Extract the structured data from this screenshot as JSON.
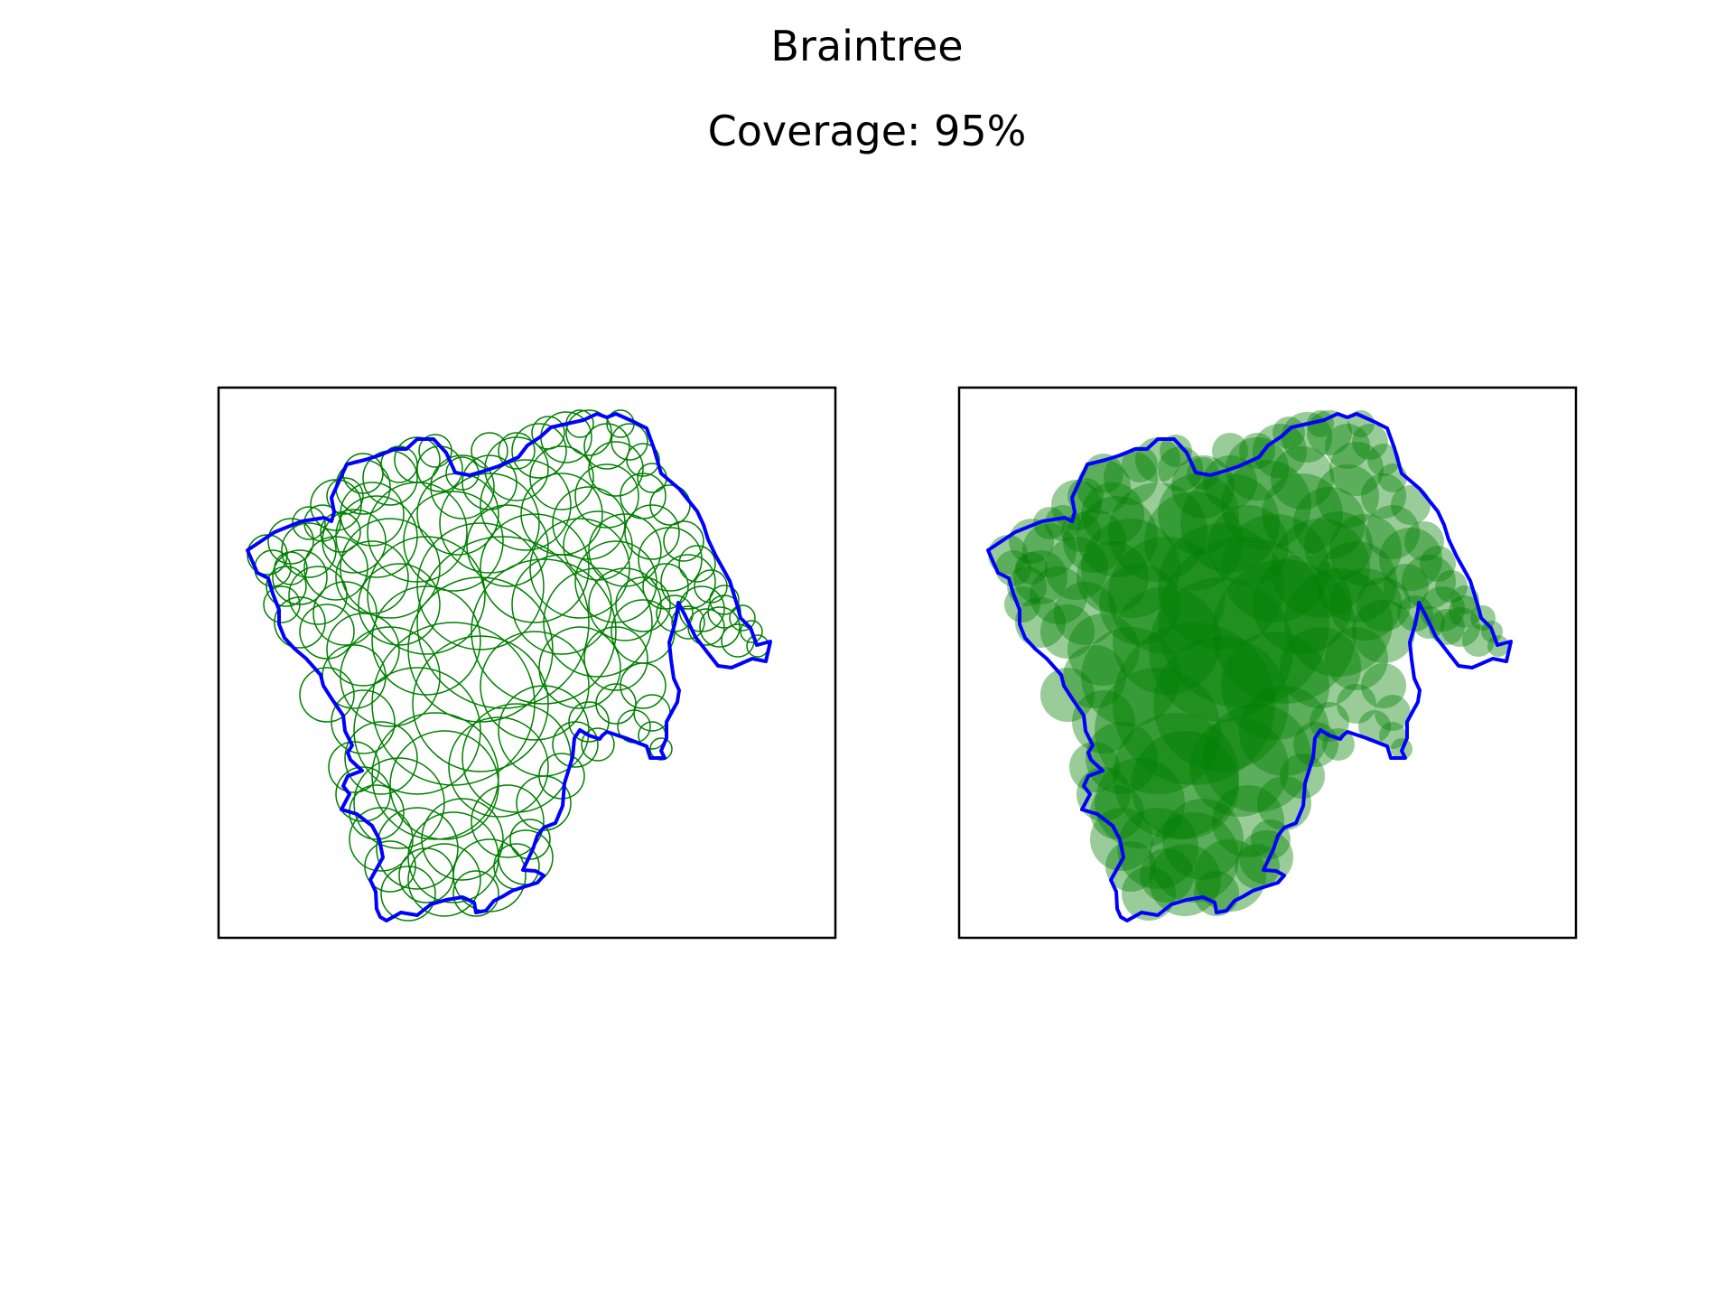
{
  "figure": {
    "title": "Braintree",
    "subtitle": "Coverage: 95%"
  },
  "colors": {
    "boundary": "#0000ff",
    "circle": "#008000",
    "frame": "#000000",
    "background": "#ffffff"
  },
  "panels": [
    {
      "style": "circle-outlines",
      "fill_opacity": 0
    },
    {
      "style": "filled-circles",
      "fill_opacity": 0.4
    }
  ],
  "coverage_percent": 95
}
